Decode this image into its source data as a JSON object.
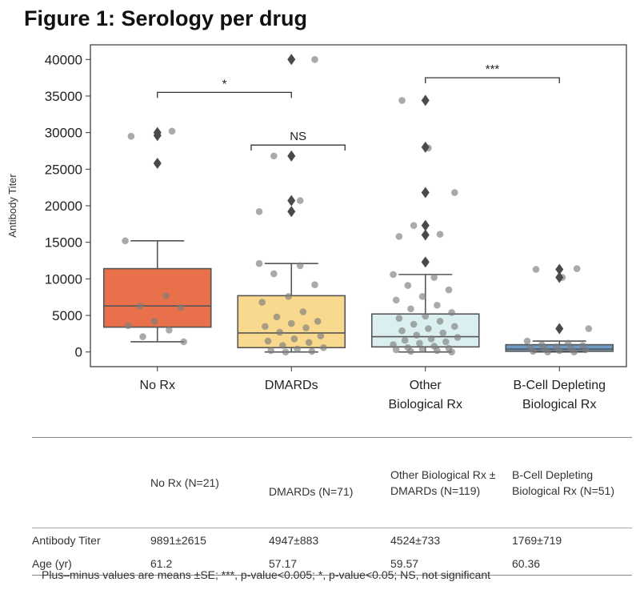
{
  "page_title": "Figure 1: Serology per drug",
  "chart_data": {
    "type": "box",
    "title": "Figure 1: Serology per drug",
    "xlabel": "",
    "ylabel": "Antibody Titer",
    "ylim": [
      -2000,
      42000
    ],
    "yticks": [
      0,
      5000,
      10000,
      15000,
      20000,
      25000,
      30000,
      35000,
      40000
    ],
    "categories": [
      {
        "label_lines": [
          "No Rx"
        ],
        "color": "#e8704a"
      },
      {
        "label_lines": [
          "DMARDs"
        ],
        "color": "#f8d98e"
      },
      {
        "label_lines": [
          "Other",
          "Biological Rx"
        ],
        "color": "#dbeff0"
      },
      {
        "label_lines": [
          "B-Cell Depleting",
          "Biological Rx"
        ],
        "color": "#6d9bc6"
      }
    ],
    "boxes": [
      {
        "q1": 3400,
        "median": 6300,
        "q3": 11400,
        "whisker_low": 1400,
        "whisker_high": 15200,
        "outliers": [
          25800,
          29600,
          30000
        ]
      },
      {
        "q1": 600,
        "median": 2600,
        "q3": 7700,
        "whisker_low": 0,
        "whisker_high": 12100,
        "outliers": [
          19200,
          20700,
          26800,
          40000
        ]
      },
      {
        "q1": 700,
        "median": 2100,
        "q3": 5200,
        "whisker_low": 0,
        "whisker_high": 10600,
        "outliers": [
          12300,
          16000,
          17300,
          21800,
          28000,
          34400
        ]
      },
      {
        "q1": 100,
        "median": 400,
        "q3": 1000,
        "whisker_low": 0,
        "whisker_high": 1500,
        "outliers": [
          3200,
          10200,
          11300
        ]
      }
    ],
    "points": [
      [
        15200,
        7700,
        6300,
        6100,
        4200,
        3600,
        3000,
        2100,
        1400,
        25800,
        29500,
        30200
      ],
      [
        12100,
        11800,
        10700,
        9200,
        7600,
        6800,
        5500,
        4800,
        4200,
        3900,
        3500,
        3300,
        2700,
        2200,
        1800,
        1500,
        1300,
        900,
        600,
        400,
        200,
        100,
        0,
        19200,
        20700,
        26800,
        40000
      ],
      [
        10600,
        10200,
        9100,
        8500,
        7600,
        7100,
        6400,
        5900,
        5400,
        4900,
        4600,
        4200,
        3800,
        3500,
        3200,
        2900,
        2600,
        2300,
        2000,
        1800,
        1600,
        1400,
        1200,
        1000,
        800,
        600,
        500,
        400,
        300,
        200,
        100,
        0,
        12300,
        15800,
        16100,
        17300,
        21800,
        27900,
        34400
      ],
      [
        1500,
        1200,
        1000,
        900,
        700,
        600,
        500,
        400,
        300,
        200,
        100,
        0,
        0,
        3200,
        10200,
        11300,
        11400
      ]
    ],
    "significance": [
      {
        "from": 0,
        "to": 1,
        "y": 35500,
        "label": "*"
      },
      {
        "from": 1,
        "to": 2,
        "y": 28300,
        "label": "NS"
      },
      {
        "from": 2,
        "to": 3,
        "y": 37500,
        "label": "***"
      }
    ]
  },
  "table": {
    "headers": [
      "",
      "No Rx (N=21)",
      "DMARDs (N=71)",
      "Other Biological Rx ± DMARDs (N=119)",
      "B-Cell Depleting Biological Rx (N=51)"
    ],
    "rows": [
      [
        "Antibody Titer",
        "9891±2615",
        "4947±883",
        "4524±733",
        "1769±719"
      ],
      [
        "Age (yr)",
        "61.2",
        "57.17",
        "59.57",
        "60.36"
      ]
    ]
  },
  "footnote": "Plus–minus values are means ±SE; ***, p-value<0.005; *, p-value<0.05; NS, not significant"
}
